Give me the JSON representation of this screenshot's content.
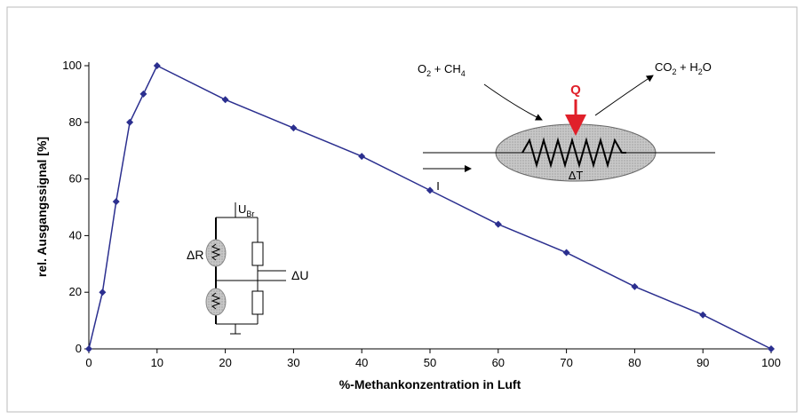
{
  "chart_data": {
    "type": "line",
    "x_label": "%-Methankonzentration in Luft",
    "y_label": "rel. Ausgangssignal [%]",
    "x": [
      0,
      2,
      4,
      6,
      8,
      10,
      20,
      30,
      40,
      50,
      60,
      70,
      80,
      90,
      100
    ],
    "series": [
      {
        "color": "#2b2f8f",
        "values": [
          0,
          20,
          52,
          80,
          90,
          100,
          88,
          78,
          68,
          56,
          44,
          34,
          22,
          12,
          0
        ]
      }
    ],
    "xlim": [
      0,
      100
    ],
    "xticks": [
      0,
      10,
      20,
      30,
      40,
      50,
      60,
      70,
      80,
      90,
      100
    ],
    "ylim": [
      0,
      100
    ],
    "yticks": [
      0,
      20,
      40,
      60,
      80,
      100
    ],
    "grid": false,
    "annotations": {
      "reaction_in": [
        "O",
        "2",
        " + CH",
        "4"
      ],
      "reaction_out": [
        "CO",
        "2",
        " + H",
        "2",
        "O"
      ],
      "heat": "Q",
      "delta_t": "ΔT",
      "current": "I",
      "bridge_voltage": [
        "U",
        "Br"
      ],
      "delta_r": "ΔR",
      "delta_u": "ΔU"
    }
  }
}
